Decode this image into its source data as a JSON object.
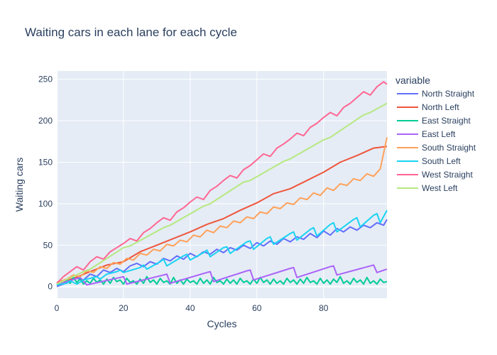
{
  "chart_data": {
    "type": "line",
    "title": "Waiting cars in each lane for each cycle",
    "xlabel": "Cycles",
    "ylabel": "Waiting cars",
    "xlim": [
      0,
      99
    ],
    "ylim": [
      -14,
      260
    ],
    "xticks": [
      0,
      20,
      40,
      60,
      80
    ],
    "yticks": [
      0,
      50,
      100,
      150,
      200,
      250
    ],
    "grid": true,
    "legend_title": "variable",
    "legend_position": "right",
    "series": [
      {
        "name": "North Straight",
        "color": "#636efa",
        "x": [
          0,
          2,
          4,
          6,
          8,
          10,
          12,
          14,
          16,
          18,
          20,
          22,
          24,
          26,
          28,
          30,
          32,
          34,
          36,
          38,
          40,
          42,
          44,
          46,
          48,
          50,
          52,
          54,
          56,
          58,
          60,
          62,
          64,
          66,
          68,
          70,
          72,
          74,
          76,
          78,
          80,
          82,
          84,
          86,
          88,
          90,
          92,
          94,
          96,
          98,
          99
        ],
        "y": [
          0,
          3,
          7,
          10,
          8,
          15,
          12,
          20,
          17,
          22,
          18,
          25,
          28,
          24,
          30,
          27,
          34,
          31,
          37,
          33,
          40,
          36,
          42,
          39,
          45,
          41,
          47,
          44,
          50,
          46,
          53,
          49,
          55,
          51,
          58,
          54,
          60,
          57,
          64,
          59,
          67,
          62,
          70,
          66,
          72,
          68,
          74,
          71,
          77,
          74,
          81
        ]
      },
      {
        "name": "North Left",
        "color": "#ef553b",
        "x": [
          0,
          5,
          10,
          15,
          20,
          25,
          30,
          35,
          40,
          45,
          50,
          55,
          60,
          65,
          70,
          75,
          80,
          85,
          90,
          95,
          99
        ],
        "y": [
          4,
          10,
          18,
          26,
          30,
          42,
          50,
          58,
          66,
          75,
          82,
          92,
          101,
          112,
          118,
          128,
          138,
          150,
          158,
          167,
          169
        ]
      },
      {
        "name": "East Straight",
        "color": "#00cc96",
        "x": [
          0,
          1,
          2,
          3,
          4,
          5,
          6,
          7,
          8,
          9,
          10,
          11,
          12,
          13,
          14,
          15,
          16,
          17,
          18,
          19,
          20,
          21,
          22,
          23,
          24,
          25,
          26,
          27,
          28,
          29,
          30,
          31,
          32,
          33,
          34,
          35,
          36,
          37,
          38,
          39,
          40,
          41,
          42,
          43,
          44,
          45,
          46,
          47,
          48,
          49,
          50,
          51,
          52,
          53,
          54,
          55,
          56,
          57,
          58,
          59,
          60,
          61,
          62,
          63,
          64,
          65,
          66,
          67,
          68,
          69,
          70,
          71,
          72,
          73,
          74,
          75,
          76,
          77,
          78,
          79,
          80,
          81,
          82,
          83,
          84,
          85,
          86,
          87,
          88,
          89,
          90,
          91,
          92,
          93,
          94,
          95,
          96,
          97,
          98,
          99
        ],
        "y": [
          2,
          6,
          3,
          8,
          4,
          11,
          5,
          9,
          3,
          7,
          4,
          10,
          5,
          8,
          3,
          9,
          4,
          11,
          6,
          8,
          3,
          10,
          5,
          7,
          3,
          9,
          4,
          12,
          5,
          8,
          3,
          10,
          5,
          7,
          3,
          11,
          4,
          8,
          3,
          9,
          5,
          7,
          3,
          10,
          4,
          8,
          3,
          11,
          5,
          7,
          3,
          9,
          4,
          8,
          3,
          10,
          5,
          7,
          3,
          9,
          4,
          11,
          5,
          8,
          3,
          9,
          4,
          7,
          3,
          10,
          5,
          8,
          3,
          9,
          4,
          11,
          5,
          7,
          3,
          10,
          4,
          8,
          3,
          9,
          5,
          12,
          4,
          7,
          3,
          10,
          5,
          8,
          3,
          11,
          4,
          7,
          3,
          9,
          5,
          6
        ]
      },
      {
        "name": "East Left",
        "color": "#ab63fa",
        "x": [
          0,
          6,
          7,
          9,
          19,
          20,
          21,
          32,
          33,
          34,
          45,
          46,
          47,
          57,
          58,
          59,
          70,
          71,
          72,
          82,
          83,
          84,
          95,
          96,
          99
        ],
        "y": [
          2,
          10,
          11,
          2,
          11,
          12,
          3,
          14,
          15,
          4,
          17,
          18,
          6,
          19,
          20,
          8,
          22,
          23,
          11,
          24,
          25,
          14,
          26,
          17,
          21
        ]
      },
      {
        "name": "South Straight",
        "color": "#ffa15a",
        "x": [
          0,
          3,
          5,
          7,
          9,
          11,
          13,
          15,
          17,
          19,
          21,
          23,
          25,
          27,
          29,
          31,
          33,
          35,
          37,
          39,
          41,
          43,
          45,
          47,
          49,
          51,
          53,
          55,
          57,
          59,
          61,
          63,
          65,
          67,
          69,
          71,
          73,
          75,
          77,
          79,
          81,
          83,
          85,
          87,
          89,
          91,
          93,
          95,
          97,
          99
        ],
        "y": [
          5,
          9,
          14,
          12,
          19,
          17,
          24,
          22,
          29,
          27,
          34,
          32,
          40,
          38,
          45,
          43,
          51,
          49,
          56,
          54,
          62,
          60,
          68,
          65,
          73,
          71,
          79,
          77,
          84,
          82,
          90,
          88,
          96,
          94,
          101,
          99,
          107,
          105,
          113,
          110,
          119,
          116,
          124,
          122,
          130,
          128,
          136,
          133,
          142,
          180
        ]
      },
      {
        "name": "South Left",
        "color": "#19d3f3",
        "x": [
          0,
          3,
          4,
          6,
          8,
          11,
          12,
          13,
          15,
          18,
          19,
          20,
          25,
          26,
          27,
          31,
          32,
          33,
          38,
          39,
          40,
          44,
          45,
          46,
          50,
          51,
          52,
          57,
          58,
          59,
          63,
          64,
          65,
          70,
          71,
          72,
          76,
          77,
          78,
          82,
          83,
          84,
          89,
          90,
          91,
          95,
          96,
          97,
          99
        ],
        "y": [
          2,
          4,
          7,
          3,
          8,
          11,
          12,
          9,
          15,
          18,
          20,
          17,
          23,
          26,
          21,
          30,
          33,
          25,
          37,
          39,
          32,
          41,
          44,
          36,
          47,
          48,
          40,
          54,
          55,
          45,
          58,
          60,
          51,
          64,
          66,
          56,
          69,
          71,
          61,
          75,
          77,
          66,
          81,
          83,
          72,
          86,
          88,
          77,
          92
        ]
      },
      {
        "name": "West Straight",
        "color": "#ff6692",
        "x": [
          0,
          2,
          4,
          6,
          8,
          10,
          12,
          14,
          16,
          18,
          20,
          22,
          24,
          26,
          28,
          30,
          32,
          34,
          36,
          38,
          40,
          42,
          44,
          46,
          48,
          50,
          52,
          54,
          56,
          58,
          60,
          62,
          64,
          66,
          68,
          70,
          72,
          74,
          76,
          78,
          80,
          82,
          84,
          86,
          88,
          90,
          92,
          94,
          96,
          98,
          99
        ],
        "y": [
          4,
          12,
          18,
          24,
          20,
          30,
          36,
          33,
          42,
          47,
          52,
          58,
          55,
          65,
          70,
          77,
          83,
          80,
          90,
          95,
          102,
          108,
          105,
          116,
          121,
          128,
          134,
          131,
          141,
          146,
          153,
          160,
          157,
          167,
          172,
          178,
          185,
          182,
          192,
          197,
          204,
          210,
          206,
          216,
          221,
          228,
          235,
          231,
          241,
          247,
          244
        ]
      },
      {
        "name": "West Left",
        "color": "#b6e880",
        "x": [
          0,
          8,
          10,
          20,
          22,
          32,
          34,
          44,
          46,
          56,
          58,
          68,
          70,
          80,
          82,
          92,
          94,
          99
        ],
        "y": [
          3,
          18,
          21,
          47,
          49,
          71,
          74,
          97,
          100,
          126,
          128,
          151,
          154,
          177,
          180,
          207,
          210,
          221
        ]
      }
    ]
  }
}
